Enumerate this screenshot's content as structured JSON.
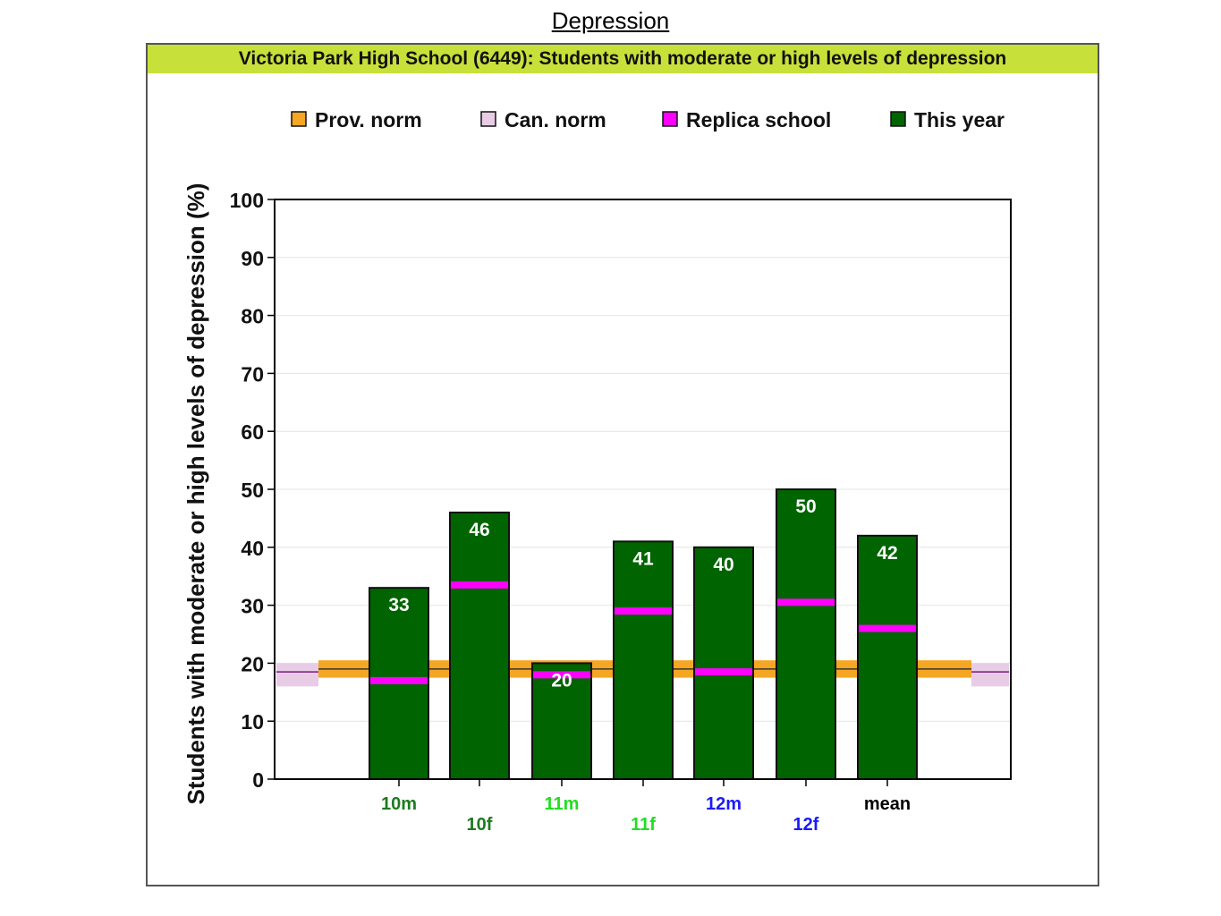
{
  "page": {
    "title": "Depression"
  },
  "chart_data": {
    "type": "bar",
    "title": "Victoria Park High School (6449): Students with moderate or high levels of depression",
    "ylabel": "Students with moderate or high levels of depression (%)",
    "xlabel": "",
    "ylim": [
      0,
      100
    ],
    "yticks": [
      0,
      10,
      20,
      30,
      40,
      50,
      60,
      70,
      80,
      90,
      100
    ],
    "grid": true,
    "legend_position": "top",
    "legend": [
      {
        "name": "Prov. norm",
        "color": "#f5a623"
      },
      {
        "name": "Can. norm",
        "color": "#e8cce6"
      },
      {
        "name": "Replica school",
        "color": "#ff00ff"
      },
      {
        "name": "This year",
        "color": "#006400"
      }
    ],
    "categories": [
      "10m",
      "10f",
      "11m",
      "11f",
      "12m",
      "12f",
      "mean"
    ],
    "category_colors": [
      "#1e7a1e",
      "#1e7a1e",
      "#22dd22",
      "#22dd22",
      "#1a1aff",
      "#1a1aff",
      "#000000"
    ],
    "series": [
      {
        "name": "This year",
        "values": [
          33,
          46,
          20,
          41,
          40,
          50,
          42
        ]
      },
      {
        "name": "Replica school",
        "values": [
          17,
          33.5,
          18,
          29,
          18.5,
          30.5,
          26
        ]
      }
    ],
    "data_labels": [
      "33",
      "46",
      "20",
      "41",
      "40",
      "50",
      "42"
    ],
    "prov_norm": {
      "value": 19,
      "low": 17.5,
      "high": 20.5
    },
    "can_norm": {
      "value": 18.5,
      "low": 16,
      "high": 20
    }
  }
}
